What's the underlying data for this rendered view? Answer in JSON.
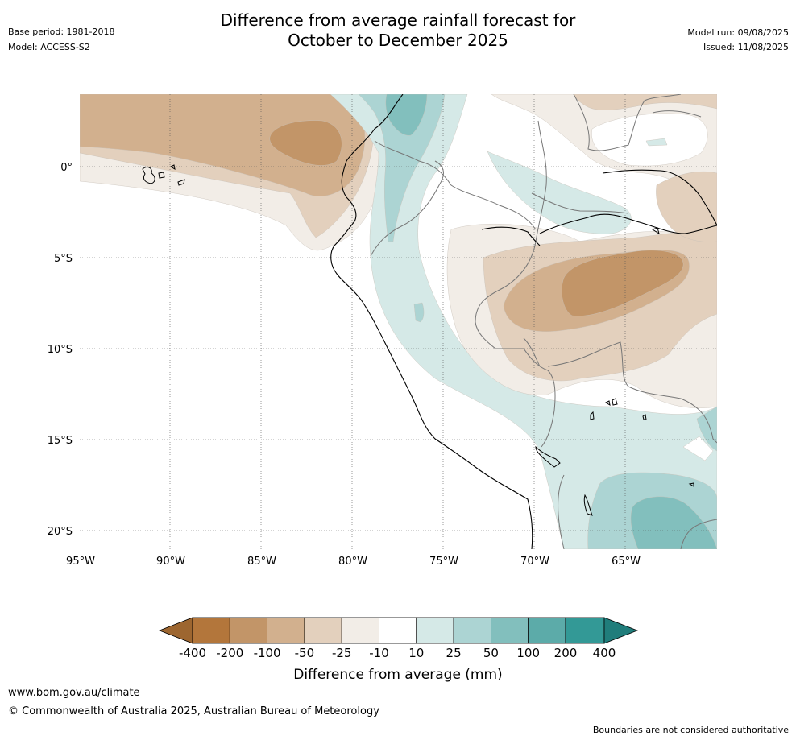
{
  "header": {
    "title_line1": "Difference from average rainfall forecast for",
    "title_line2": "October to December 2025",
    "base_period": "Base period: 1981-2018",
    "model": "Model: ACCESS-S2",
    "model_run": "Model run: 09/08/2025",
    "issued": "Issued: 11/08/2025"
  },
  "map": {
    "lon_labels": [
      "95°W",
      "90°W",
      "85°W",
      "80°W",
      "75°W",
      "70°W",
      "65°W"
    ],
    "lat_labels": [
      "0°",
      "5°S",
      "10°S",
      "15°S",
      "20°S"
    ],
    "colors": {
      "c_m400": "#9d6630",
      "c_m200": "#b3763b",
      "c_m100": "#c29568",
      "c_m50": "#d2b08e",
      "c_m25": "#e3d0bd",
      "c_m10": "#f2ede7",
      "c_0": "#ffffff",
      "c_10": "#d5e9e7",
      "c_25": "#acd4d3",
      "c_50": "#82bfbd",
      "c_100": "#5caba9",
      "c_200": "#339996",
      "c_400": "#207d7b"
    }
  },
  "colorbar": {
    "labels": [
      "-400",
      "-200",
      "-100",
      "-50",
      "-25",
      "-10",
      "10",
      "25",
      "50",
      "100",
      "200",
      "400"
    ],
    "title": "Difference from average (mm)"
  },
  "footer": {
    "website": "www.bom.gov.au/climate",
    "copyright": "© Commonwealth of Australia 2025, Australian Bureau of Meteorology",
    "disclaimer": "Boundaries are not considered authoritative"
  }
}
